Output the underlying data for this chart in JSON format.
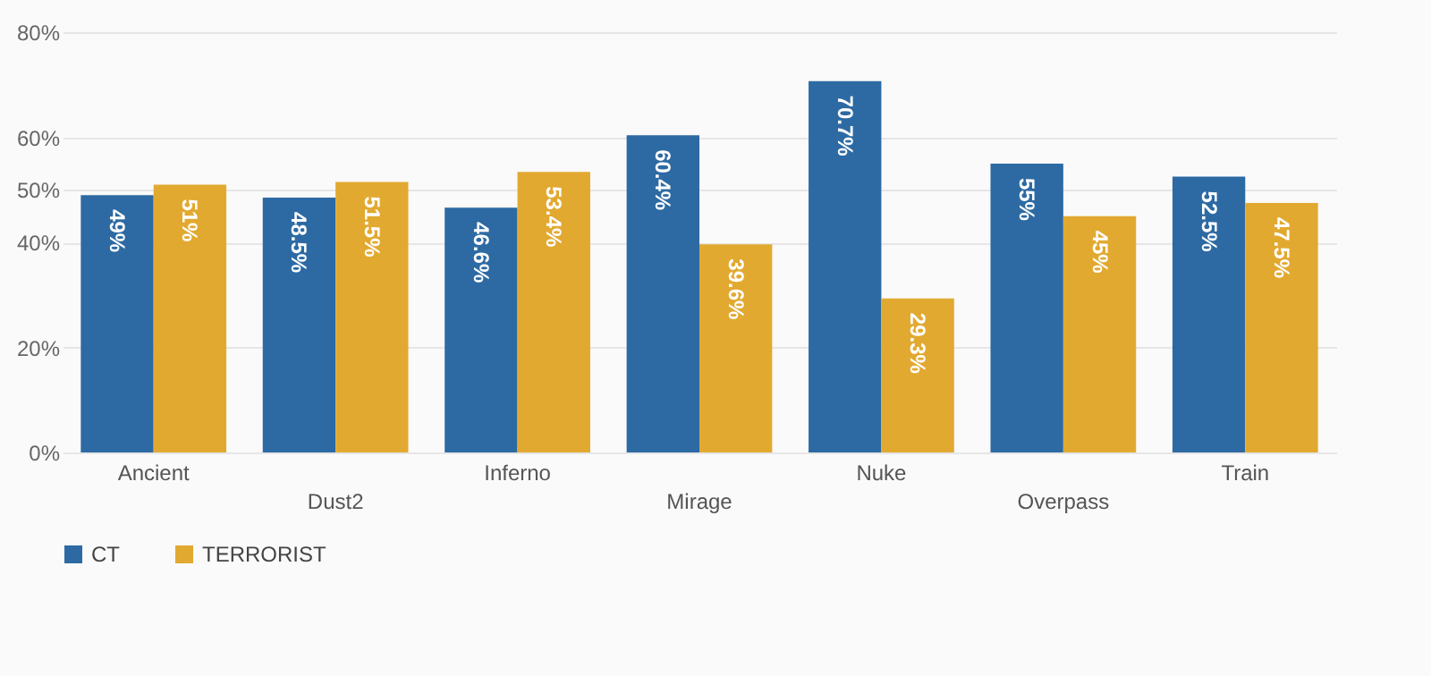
{
  "chart_data": {
    "type": "bar",
    "categories": [
      "Ancient",
      "Dust2",
      "Inferno",
      "Mirage",
      "Nuke",
      "Overpass",
      "Train"
    ],
    "series": [
      {
        "name": "CT",
        "color": "#2d6aa3",
        "values": [
          49,
          48.5,
          46.6,
          60.4,
          70.7,
          55,
          52.5
        ],
        "value_labels": [
          "49%",
          "48.5%",
          "46.6%",
          "60.4%",
          "70.7%",
          "55%",
          "52.5%"
        ]
      },
      {
        "name": "TERRORIST",
        "color": "#e2a931",
        "values": [
          51,
          51.5,
          53.4,
          39.6,
          29.3,
          45,
          47.5
        ],
        "value_labels": [
          "51%",
          "51.5%",
          "53.4%",
          "39.6%",
          "29.3%",
          "45%",
          "47.5%"
        ]
      }
    ],
    "ylim": [
      0,
      80
    ],
    "yticks": [
      {
        "value": 0,
        "label": "0%"
      },
      {
        "value": 20,
        "label": "20%"
      },
      {
        "value": 40,
        "label": "40%"
      },
      {
        "value": 50,
        "label": "50%"
      },
      {
        "value": 60,
        "label": "60%"
      },
      {
        "value": 80,
        "label": "80%"
      }
    ],
    "grid": "y",
    "legend": "bottom"
  }
}
